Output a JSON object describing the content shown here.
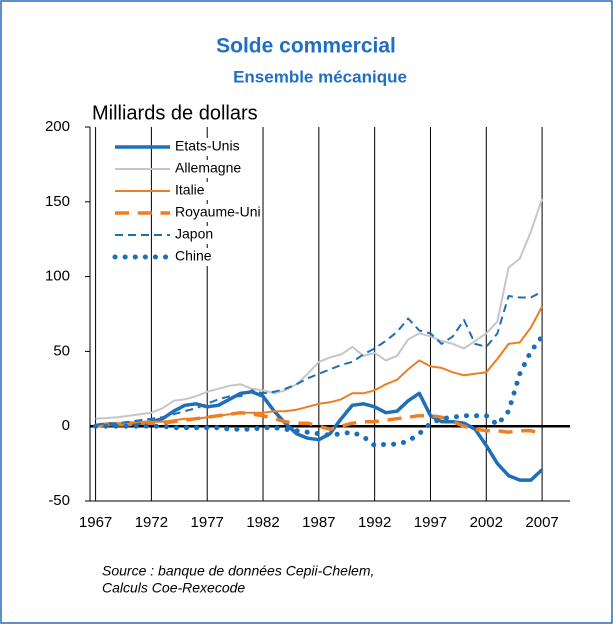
{
  "chart_data": {
    "type": "line",
    "title": "Solde commercial",
    "subtitle": "Ensemble mécanique",
    "ylabel": "Milliards de dollars",
    "source": [
      "Source : banque de données Cepii-Chelem,",
      "Calculs Coe-Rexecode"
    ],
    "x": [
      1967,
      1968,
      1969,
      1970,
      1971,
      1972,
      1973,
      1974,
      1975,
      1976,
      1977,
      1978,
      1979,
      1980,
      1981,
      1982,
      1983,
      1984,
      1985,
      1986,
      1987,
      1988,
      1989,
      1990,
      1991,
      1992,
      1993,
      1994,
      1995,
      1996,
      1997,
      1998,
      1999,
      2000,
      2001,
      2002,
      2003,
      2004,
      2005,
      2006,
      2007
    ],
    "xlim": [
      1966.5,
      2009.5
    ],
    "xticks": [
      1967,
      1972,
      1977,
      1982,
      1987,
      1992,
      1997,
      2002,
      2007
    ],
    "ylim": [
      -50,
      200
    ],
    "yticks": [
      -50,
      0,
      50,
      100,
      150,
      200
    ],
    "grid": true,
    "legend": "top-left",
    "series": [
      {
        "name": "Etats-Unis",
        "color": "#1f6fb8",
        "style": "solid",
        "width": 3.5,
        "values": [
          0,
          1,
          1,
          2,
          2,
          3,
          5,
          10,
          14,
          15,
          13,
          14,
          18,
          22,
          23,
          20,
          10,
          2,
          -5,
          -8,
          -9,
          -5,
          5,
          14,
          15,
          13,
          9,
          10,
          17,
          22,
          7,
          3,
          3,
          2,
          -2,
          -13,
          -25,
          -33,
          -36,
          -36,
          -29
        ]
      },
      {
        "name": "Allemagne",
        "color": "#c6c6c6",
        "style": "solid",
        "width": 2,
        "values": [
          5,
          5.5,
          6,
          7,
          8,
          9,
          12,
          17,
          18,
          20,
          23,
          25,
          27,
          28,
          25,
          24,
          22,
          24,
          28,
          35,
          43,
          46,
          48,
          53,
          47,
          49,
          44,
          47,
          58,
          62,
          60,
          57,
          55,
          52,
          57,
          62,
          70,
          106,
          112,
          130,
          152
        ]
      },
      {
        "name": "Italie",
        "color": "#ef7d22",
        "style": "solid",
        "width": 2,
        "values": [
          1,
          2,
          2,
          2,
          3,
          3,
          3,
          4,
          5,
          5,
          6,
          7,
          8,
          9,
          9,
          9,
          10,
          10,
          11,
          13,
          15,
          16,
          18,
          22,
          22,
          24,
          28,
          31,
          38,
          44,
          40,
          39,
          36,
          34,
          35,
          36,
          45,
          55,
          56,
          66,
          80
        ]
      },
      {
        "name": "Royaume-Uni",
        "color": "#ef7d22",
        "style": "dashed",
        "width": 3.5,
        "values": [
          0,
          1,
          1,
          1,
          2,
          2,
          2,
          3,
          4,
          5,
          6,
          7,
          8,
          9,
          8,
          7,
          5,
          3,
          2,
          2,
          0,
          -2,
          0,
          2,
          3,
          3,
          4,
          5,
          6,
          7,
          7,
          6,
          3,
          0,
          -2,
          -3,
          -3,
          -4,
          -3,
          -3,
          -5
        ]
      },
      {
        "name": "Japon",
        "color": "#1f6fb8",
        "style": "dashed",
        "width": 2,
        "values": [
          1,
          2,
          2,
          3,
          4,
          5,
          6,
          8,
          10,
          12,
          15,
          18,
          20,
          20,
          24,
          22,
          23,
          25,
          28,
          32,
          35,
          38,
          41,
          43,
          48,
          52,
          57,
          63,
          72,
          64,
          62,
          55,
          60,
          71,
          55,
          53,
          62,
          87,
          86,
          86,
          90
        ]
      },
      {
        "name": "Chine",
        "color": "#1f6fb8",
        "style": "dotted",
        "width": 5,
        "values": [
          0,
          0,
          0,
          0,
          0,
          0,
          0,
          -1,
          -1,
          -1,
          -1,
          -1,
          -2,
          -2,
          -2,
          -1,
          -1,
          -2,
          -3,
          -4,
          -5,
          -6,
          -5,
          -4,
          -7,
          -13,
          -12,
          -12,
          -10,
          -5,
          2,
          5,
          6,
          7,
          7,
          7,
          1,
          10,
          35,
          50,
          60
        ]
      }
    ]
  }
}
